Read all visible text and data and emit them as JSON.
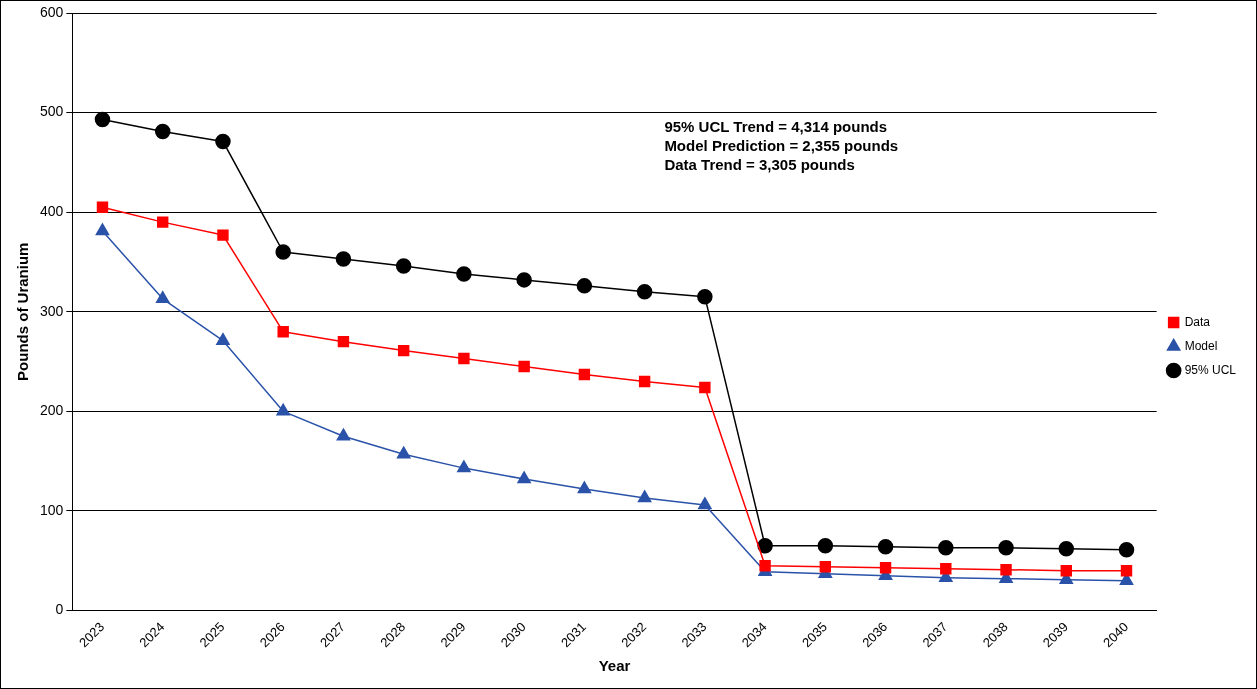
{
  "chart_data": {
    "type": "line",
    "xlabel": "Year",
    "ylabel": "Pounds of Uranium",
    "categories": [
      "2023",
      "2024",
      "2025",
      "2026",
      "2027",
      "2028",
      "2029",
      "2030",
      "2031",
      "2032",
      "2033",
      "2034",
      "2035",
      "2036",
      "2037",
      "2038",
      "2039",
      "2040"
    ],
    "series": [
      {
        "name": "Data",
        "color": "#ff0000",
        "marker": "square",
        "values": [
          405,
          390,
          377,
          280,
          270,
          261,
          253,
          245,
          237,
          230,
          224,
          45,
          44,
          43,
          42,
          41,
          40,
          40
        ]
      },
      {
        "name": "Model",
        "color": "#2a52a8",
        "marker": "triangle",
        "values": [
          381,
          313,
          271,
          200,
          175,
          157,
          143,
          132,
          122,
          113,
          106,
          39,
          37,
          35,
          33,
          32,
          31,
          30
        ]
      },
      {
        "name": "95% UCL",
        "color": "#000000",
        "marker": "circle",
        "values": [
          493,
          481,
          471,
          360,
          353,
          346,
          338,
          332,
          326,
          320,
          315,
          65,
          65,
          64,
          63,
          63,
          62,
          61
        ]
      }
    ],
    "ylim": [
      0,
      600
    ],
    "yticks": [
      0,
      100,
      200,
      300,
      400,
      500,
      600
    ],
    "grid": "y",
    "legend": "right",
    "line_style": "solid",
    "annotations": [
      "95% UCL Trend = 4,314 pounds",
      "Model Prediction = 2,355 pounds",
      "Data Trend = 3,305 pounds"
    ]
  }
}
